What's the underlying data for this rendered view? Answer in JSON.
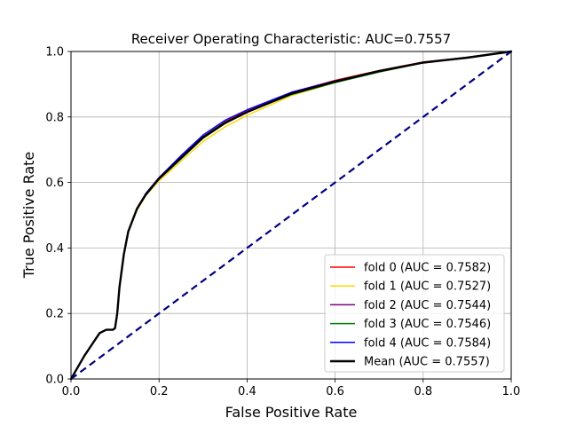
{
  "chart_data": {
    "type": "line",
    "title": "Receiver Operating Characteristic: AUC=0.7557",
    "xlabel": "False Positive Rate",
    "ylabel": "True Positive Rate",
    "xlim": [
      0,
      1
    ],
    "ylim": [
      0,
      1
    ],
    "xticks": [
      "0.0",
      "0.2",
      "0.4",
      "0.6",
      "0.8",
      "1.0"
    ],
    "yticks": [
      "0.0",
      "0.2",
      "0.4",
      "0.6",
      "0.8",
      "1.0"
    ],
    "grid": true,
    "legend_position": "lower-right",
    "series": [
      {
        "name": "fold 0 (AUC = 0.7582)",
        "color": "#ff0000",
        "x": [
          0,
          0.03,
          0.065,
          0.08,
          0.095,
          0.1,
          0.105,
          0.11,
          0.12,
          0.13,
          0.15,
          0.17,
          0.2,
          0.25,
          0.3,
          0.35,
          0.4,
          0.5,
          0.6,
          0.7,
          0.8,
          0.9,
          1.0
        ],
        "y": [
          0,
          0.07,
          0.14,
          0.15,
          0.15,
          0.155,
          0.2,
          0.28,
          0.38,
          0.45,
          0.52,
          0.565,
          0.615,
          0.68,
          0.74,
          0.785,
          0.82,
          0.875,
          0.912,
          0.942,
          0.968,
          0.982,
          1.0
        ]
      },
      {
        "name": "fold 1 (AUC = 0.7527)",
        "color": "#ffd700",
        "x": [
          0,
          0.03,
          0.065,
          0.08,
          0.095,
          0.1,
          0.105,
          0.11,
          0.12,
          0.13,
          0.15,
          0.17,
          0.2,
          0.25,
          0.3,
          0.35,
          0.4,
          0.5,
          0.6,
          0.7,
          0.8,
          0.9,
          1.0
        ],
        "y": [
          0,
          0.07,
          0.14,
          0.15,
          0.15,
          0.155,
          0.2,
          0.28,
          0.38,
          0.45,
          0.515,
          0.56,
          0.605,
          0.665,
          0.725,
          0.77,
          0.805,
          0.865,
          0.905,
          0.938,
          0.965,
          0.981,
          1.0
        ]
      },
      {
        "name": "fold 2 (AUC = 0.7544)",
        "color": "#800080",
        "x": [
          0,
          0.03,
          0.065,
          0.08,
          0.095,
          0.1,
          0.105,
          0.11,
          0.12,
          0.13,
          0.15,
          0.17,
          0.2,
          0.25,
          0.3,
          0.35,
          0.4,
          0.5,
          0.6,
          0.7,
          0.8,
          0.9,
          1.0
        ],
        "y": [
          0,
          0.07,
          0.14,
          0.15,
          0.15,
          0.155,
          0.2,
          0.28,
          0.38,
          0.45,
          0.518,
          0.562,
          0.61,
          0.672,
          0.735,
          0.78,
          0.815,
          0.87,
          0.908,
          0.94,
          0.966,
          0.981,
          1.0
        ]
      },
      {
        "name": "fold 3 (AUC = 0.7546)",
        "color": "#008000",
        "x": [
          0,
          0.03,
          0.065,
          0.08,
          0.095,
          0.1,
          0.105,
          0.11,
          0.12,
          0.13,
          0.15,
          0.17,
          0.2,
          0.25,
          0.3,
          0.35,
          0.4,
          0.5,
          0.6,
          0.7,
          0.8,
          0.9,
          1.0
        ],
        "y": [
          0,
          0.07,
          0.14,
          0.15,
          0.15,
          0.155,
          0.2,
          0.28,
          0.38,
          0.45,
          0.52,
          0.564,
          0.61,
          0.672,
          0.735,
          0.78,
          0.815,
          0.868,
          0.905,
          0.937,
          0.965,
          0.981,
          1.0
        ]
      },
      {
        "name": "fold 4 (AUC = 0.7584)",
        "color": "#0000ff",
        "x": [
          0,
          0.03,
          0.065,
          0.08,
          0.095,
          0.1,
          0.105,
          0.11,
          0.12,
          0.13,
          0.15,
          0.17,
          0.2,
          0.25,
          0.3,
          0.35,
          0.4,
          0.5,
          0.6,
          0.7,
          0.8,
          0.9,
          1.0
        ],
        "y": [
          0,
          0.07,
          0.14,
          0.15,
          0.15,
          0.155,
          0.2,
          0.28,
          0.38,
          0.45,
          0.522,
          0.567,
          0.615,
          0.682,
          0.745,
          0.79,
          0.822,
          0.875,
          0.91,
          0.941,
          0.967,
          0.982,
          1.0
        ]
      },
      {
        "name": "Mean (AUC = 0.7557)",
        "color": "#000000",
        "x": [
          0,
          0.03,
          0.065,
          0.08,
          0.095,
          0.1,
          0.105,
          0.11,
          0.12,
          0.13,
          0.15,
          0.17,
          0.2,
          0.25,
          0.3,
          0.35,
          0.4,
          0.5,
          0.6,
          0.7,
          0.8,
          0.9,
          1.0
        ],
        "y": [
          0,
          0.07,
          0.14,
          0.15,
          0.15,
          0.155,
          0.2,
          0.28,
          0.38,
          0.45,
          0.52,
          0.563,
          0.612,
          0.675,
          0.738,
          0.782,
          0.815,
          0.871,
          0.908,
          0.94,
          0.966,
          0.981,
          1.0
        ]
      }
    ],
    "reference_line": {
      "color": "#000080",
      "style": "dashed",
      "x": [
        0,
        1
      ],
      "y": [
        0,
        1
      ]
    }
  }
}
